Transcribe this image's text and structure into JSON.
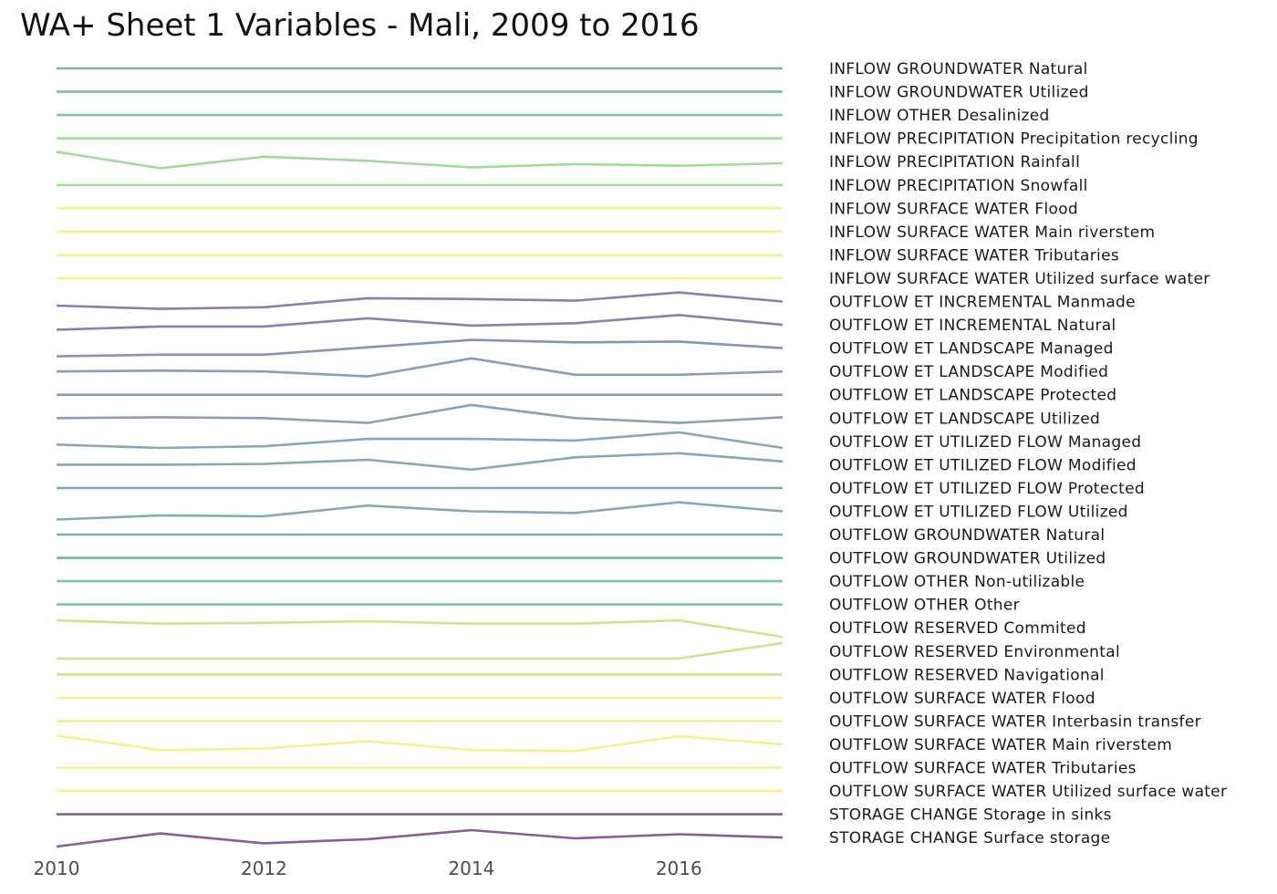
{
  "chart_data": {
    "type": "line",
    "title": "WA+ Sheet 1 Variables - Mali, 2009 to 2016",
    "xlabel": "",
    "ylabel": "",
    "x": [
      2010,
      2011,
      2012,
      2013,
      2014,
      2015,
      2016,
      2017
    ],
    "x_ticks": [
      2010,
      2012,
      2014,
      2016
    ],
    "grid": false,
    "legend": "right",
    "series": [
      {
        "name": "INFLOW GROUNDWATER Natural",
        "color": "#78b6b6",
        "values": [
          0,
          0,
          0,
          0,
          0,
          0,
          0,
          0
        ]
      },
      {
        "name": "INFLOW GROUNDWATER Utilized",
        "color": "#70baa8",
        "values": [
          0,
          0,
          0,
          0,
          0,
          0,
          0,
          0
        ]
      },
      {
        "name": "INFLOW OTHER Desalinized",
        "color": "#7cc9a6",
        "values": [
          0,
          0,
          0,
          0,
          0,
          0,
          0,
          0
        ]
      },
      {
        "name": "INFLOW PRECIPITATION Precipitation recycling",
        "color": "#9fdc9a",
        "values": [
          0,
          0,
          0,
          0,
          0,
          0,
          0,
          0
        ]
      },
      {
        "name": "INFLOW PRECIPITATION Rainfall",
        "color": "#9fdc9a",
        "values": [
          0.6,
          -0.4,
          0.3,
          0.05,
          -0.35,
          -0.15,
          -0.25,
          -0.1
        ]
      },
      {
        "name": "INFLOW PRECIPITATION Snowfall",
        "color": "#a5dc9a",
        "values": [
          0,
          0,
          0,
          0,
          0,
          0,
          0,
          0
        ]
      },
      {
        "name": "INFLOW SURFACE WATER Flood",
        "color": "#f5f28a",
        "values": [
          0,
          0,
          0,
          0,
          0,
          0,
          0,
          0
        ]
      },
      {
        "name": "INFLOW SURFACE WATER Main riverstem",
        "color": "#f5f28a",
        "values": [
          0,
          0,
          0,
          0,
          0,
          0,
          0,
          0
        ]
      },
      {
        "name": "INFLOW SURFACE WATER Tributaries",
        "color": "#f5f28a",
        "values": [
          0,
          0,
          0,
          0,
          0,
          0,
          0,
          0
        ]
      },
      {
        "name": "INFLOW SURFACE WATER Utilized surface water",
        "color": "#f5f28a",
        "values": [
          0,
          0,
          0,
          0,
          0,
          0,
          0,
          0
        ]
      },
      {
        "name": "OUTFLOW ET INCREMENTAL Manmade",
        "color": "#8f7cb0",
        "values": [
          -0.25,
          -0.45,
          -0.35,
          0.2,
          0.15,
          0.05,
          0.55,
          0
        ]
      },
      {
        "name": "OUTFLOW ET INCREMENTAL Natural",
        "color": "#8f7cb0",
        "values": [
          -0.3,
          -0.1,
          -0.1,
          0.4,
          -0.05,
          0.1,
          0.6,
          0
        ]
      },
      {
        "name": "OUTFLOW ET LANDSCAPE Managed",
        "color": "#8893b8",
        "values": [
          -0.5,
          -0.4,
          -0.4,
          0.05,
          0.5,
          0.35,
          0.4,
          0
        ]
      },
      {
        "name": "OUTFLOW ET LANDSCAPE Modified",
        "color": "#8a9ac4",
        "values": [
          0,
          0.05,
          0,
          -0.3,
          0.8,
          -0.2,
          -0.2,
          0
        ]
      },
      {
        "name": "OUTFLOW ET LANDSCAPE Protected",
        "color": "#8a9ab4",
        "values": [
          0,
          0,
          0,
          0,
          0,
          0,
          0,
          0
        ]
      },
      {
        "name": "OUTFLOW ET LANDSCAPE Utilized",
        "color": "#8aa0b8",
        "values": [
          0,
          0.05,
          0,
          -0.3,
          0.8,
          0,
          -0.3,
          0.05
        ]
      },
      {
        "name": "OUTFLOW ET UTILIZED FLOW Managed",
        "color": "#84a9b8",
        "values": [
          -0.2,
          -0.4,
          -0.3,
          0.15,
          0.15,
          0.05,
          0.55,
          -0.4
        ]
      },
      {
        "name": "OUTFLOW ET UTILIZED FLOW Modified",
        "color": "#84a9b8",
        "values": [
          0,
          0,
          0.05,
          0.3,
          -0.3,
          0.45,
          0.7,
          0.2
        ]
      },
      {
        "name": "OUTFLOW ET UTILIZED FLOW Protected",
        "color": "#80aab0",
        "values": [
          0,
          0,
          0,
          0,
          0,
          0,
          0,
          0
        ]
      },
      {
        "name": "OUTFLOW ET UTILIZED FLOW Utilized",
        "color": "#82aab4",
        "values": [
          -0.5,
          -0.25,
          -0.3,
          0.35,
          0,
          -0.1,
          0.55,
          0
        ]
      },
      {
        "name": "OUTFLOW GROUNDWATER Natural",
        "color": "#76b2b2",
        "values": [
          0,
          0,
          0,
          0,
          0,
          0,
          0,
          0
        ]
      },
      {
        "name": "OUTFLOW GROUNDWATER Utilized",
        "color": "#74b8ac",
        "values": [
          0,
          0,
          0,
          0,
          0,
          0,
          0,
          0
        ]
      },
      {
        "name": "OUTFLOW OTHER Non-utilizable",
        "color": "#7ac6ac",
        "values": [
          0,
          0,
          0,
          0,
          0,
          0,
          0,
          0
        ]
      },
      {
        "name": "OUTFLOW OTHER Other",
        "color": "#7ac8ac",
        "values": [
          0,
          0,
          0,
          0,
          0,
          0,
          0,
          0
        ]
      },
      {
        "name": "OUTFLOW RESERVED Commited",
        "color": "#cce688",
        "values": [
          0.45,
          0.25,
          0.3,
          0.4,
          0.25,
          0.25,
          0.45,
          -0.55
        ]
      },
      {
        "name": "OUTFLOW RESERVED Environmental",
        "color": "#cce688",
        "values": [
          -0.45,
          -0.45,
          -0.45,
          -0.45,
          -0.45,
          -0.45,
          -0.45,
          0.5
        ]
      },
      {
        "name": "OUTFLOW RESERVED Navigational",
        "color": "#cce688",
        "values": [
          0,
          0,
          0,
          0,
          0,
          0,
          0,
          0
        ]
      },
      {
        "name": "OUTFLOW SURFACE WATER Flood",
        "color": "#f5f28a",
        "values": [
          0,
          0,
          0,
          0,
          0,
          0,
          0,
          0
        ]
      },
      {
        "name": "OUTFLOW SURFACE WATER Interbasin transfer",
        "color": "#f5f28a",
        "values": [
          0,
          0,
          0,
          0,
          0,
          0,
          0,
          0
        ]
      },
      {
        "name": "OUTFLOW SURFACE WATER Main riverstem",
        "color": "#f5f28a",
        "values": [
          0.55,
          -0.35,
          -0.25,
          0.2,
          -0.35,
          -0.4,
          0.5,
          0
        ]
      },
      {
        "name": "OUTFLOW SURFACE WATER Tributaries",
        "color": "#f5f28a",
        "values": [
          0,
          0,
          0,
          0,
          0,
          0,
          0,
          0
        ]
      },
      {
        "name": "OUTFLOW SURFACE WATER Utilized surface water",
        "color": "#f5f28a",
        "values": [
          0,
          0,
          0,
          0,
          0,
          0,
          0,
          0
        ]
      },
      {
        "name": "STORAGE CHANGE Storage in sinks",
        "color": "#8a5c9c",
        "values": [
          0,
          0,
          0,
          0,
          0,
          0,
          0,
          0
        ]
      },
      {
        "name": "STORAGE CHANGE Surface storage",
        "color": "#8a5c9c",
        "values": [
          -0.55,
          0.25,
          -0.35,
          -0.1,
          0.45,
          -0.05,
          0.2,
          0
        ]
      }
    ]
  }
}
